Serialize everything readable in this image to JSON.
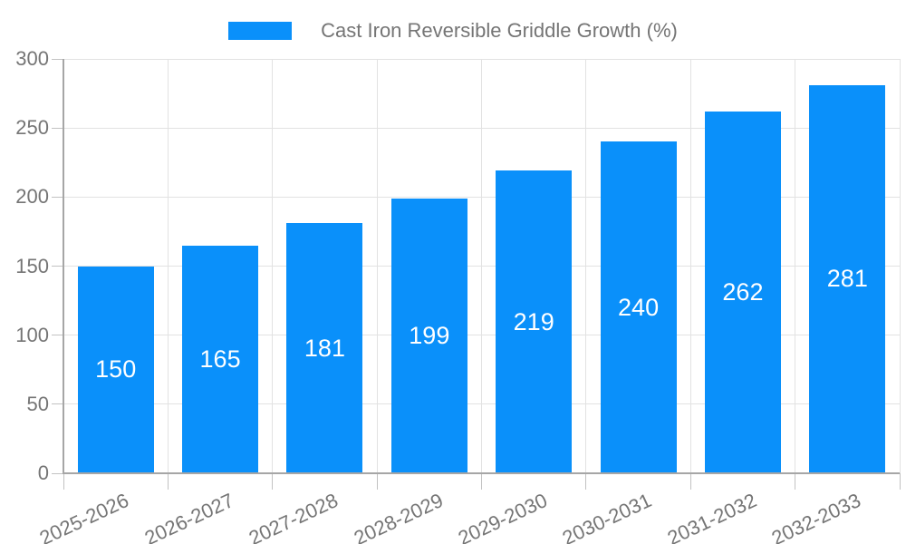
{
  "chart_data": {
    "type": "bar",
    "title": "Cast Iron Reversible Griddle Growth (%)",
    "legend_entries": [
      "Cast Iron Reversible Griddle Growth (%)"
    ],
    "legend_position": "top-center",
    "categories": [
      "2025-2026",
      "2026-2027",
      "2027-2028",
      "2028-2029",
      "2029-2030",
      "2030-2031",
      "2031-2032",
      "2032-2033"
    ],
    "values": [
      150,
      165,
      181,
      199,
      219,
      240,
      262,
      281
    ],
    "xlabel": "",
    "ylabel": "",
    "ylim": [
      0,
      300
    ],
    "yticks": [
      0,
      50,
      100,
      150,
      200,
      250,
      300
    ],
    "grid": true,
    "x_label_rotation_deg": -25,
    "colors": {
      "bar": "#0a90fa",
      "value_label": "#ffffff",
      "axis_text": "#757575",
      "axis_line": "#a6a6a6",
      "grid_line": "#e2e2e2",
      "tick_mark": "#c2c2c2",
      "background": "#ffffff"
    }
  }
}
